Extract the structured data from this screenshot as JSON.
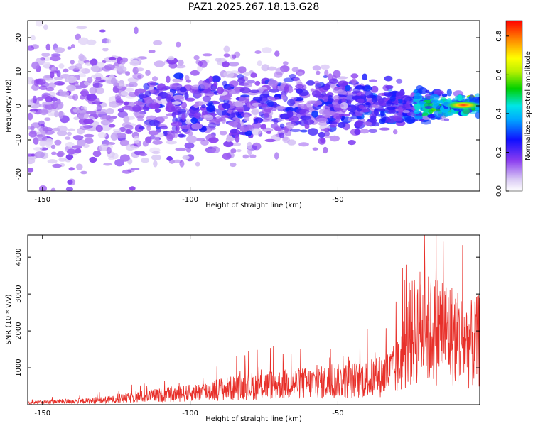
{
  "title": "PAZ1.2025.267.18.13.G28",
  "colors": {
    "snr_line": "#e8302a",
    "frame": "#000000"
  },
  "chart_data": [
    {
      "type": "heatmap",
      "xlabel": "Height of straight line (km)",
      "ylabel": "Frequency (Hz)",
      "xlim": [
        -155,
        -2
      ],
      "ylim": [
        -25,
        25
      ],
      "xticks": [
        "-150",
        "-100",
        "-50"
      ],
      "yticks": [
        "20",
        "10",
        "0",
        "-10",
        "-20"
      ],
      "colorbar": {
        "label": "Normalized spectral amplitude",
        "range": [
          0,
          0.88
        ],
        "ticks": [
          "0.0",
          "0.2",
          "0.4",
          "0.6",
          "0.8"
        ],
        "colormap": "rainbow"
      },
      "grid": false
    },
    {
      "type": "line",
      "xlabel": "Height of straight line (km)",
      "ylabel": "SNR (10 * v/v)",
      "xlim": [
        -155,
        -2
      ],
      "ylim": [
        0,
        4600
      ],
      "xticks": [
        "-150",
        "-100",
        "-50"
      ],
      "yticks": [
        "1000",
        "2000",
        "3000",
        "4000"
      ],
      "grid": false,
      "series": [
        {
          "x": [
            -155,
            -150,
            -145,
            -140,
            -135,
            -130,
            -125,
            -120,
            -115,
            -110,
            -105,
            -100,
            -95,
            -90,
            -85,
            -80,
            -75,
            -70,
            -65,
            -60,
            -55,
            -50,
            -45,
            -40,
            -35,
            -30,
            -28,
            -25,
            -22,
            -20,
            -18,
            -15,
            -12,
            -10,
            -8,
            -5,
            -3,
            -2
          ],
          "values": [
            90,
            110,
            140,
            150,
            170,
            200,
            250,
            320,
            380,
            430,
            470,
            520,
            600,
            700,
            750,
            820,
            880,
            900,
            950,
            980,
            1000,
            1050,
            1100,
            1150,
            1300,
            1600,
            2300,
            3200,
            3600,
            3400,
            3300,
            3500,
            3200,
            3100,
            2900,
            2700,
            2800,
            2900
          ]
        }
      ]
    }
  ]
}
